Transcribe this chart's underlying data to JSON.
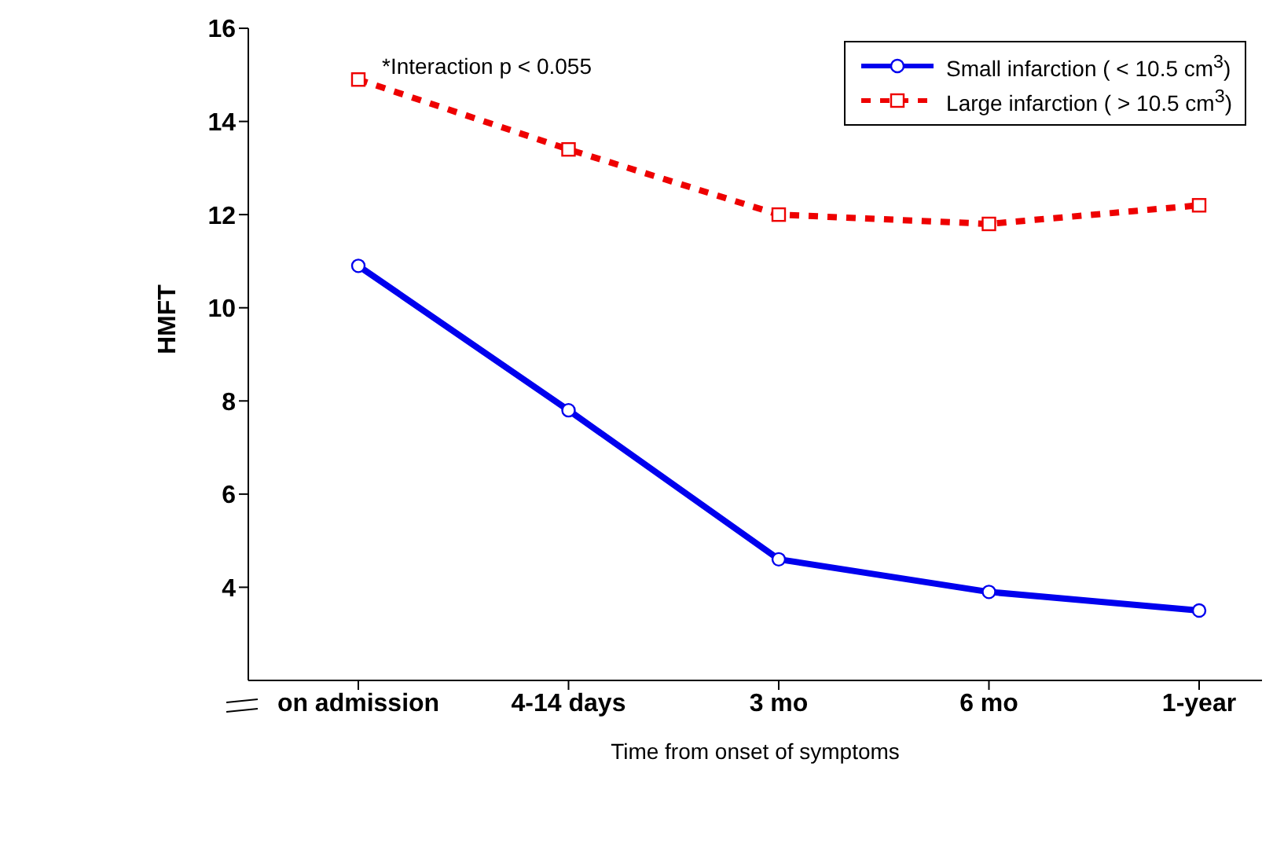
{
  "chart_data": {
    "type": "line",
    "xlabel": "Time from onset of symptoms",
    "ylabel": "HMFT",
    "categories": [
      "on admission",
      "4-14 days",
      "3 mo",
      "6 mo",
      "1-year"
    ],
    "series": [
      {
        "name": "Small infarction ( < 10.5 cm$^{3}$)",
        "color": "#0000ee",
        "values": [
          10.9,
          7.8,
          4.6,
          3.9,
          3.5
        ],
        "marker": "circle",
        "line_style": "solid"
      },
      {
        "name": "Large infarction ( > 10.5 cm$^{3}$)",
        "color": "#ee0000",
        "values": [
          14.9,
          13.4,
          12.0,
          11.8,
          12.2
        ],
        "marker": "square",
        "line_style": "dashed"
      }
    ],
    "ylim": [
      2,
      16
    ],
    "yticks": [
      4,
      6,
      8,
      10,
      12,
      14,
      16
    ],
    "grid": false,
    "legend": "top right",
    "annotations": [
      "*Interaction p < 0.055"
    ]
  }
}
